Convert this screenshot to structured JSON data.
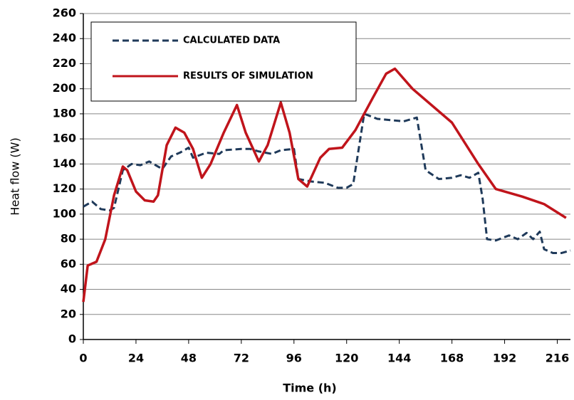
{
  "chart_data": {
    "type": "line",
    "x_label": "Time (h)",
    "y_label": "Heat flow (W)",
    "xlim": [
      0,
      222
    ],
    "ylim": [
      0,
      260
    ],
    "xticks": [
      0,
      24,
      48,
      72,
      96,
      120,
      144,
      168,
      192,
      216
    ],
    "yticks": [
      0,
      20,
      40,
      60,
      80,
      100,
      120,
      140,
      160,
      180,
      200,
      220,
      240,
      260
    ],
    "grid": true,
    "legend": "upper left",
    "series": [
      {
        "name": "CALCULATED DATA",
        "color": "#1f3a5a",
        "dash": true,
        "x": [
          0,
          4,
          8,
          12,
          14,
          18,
          22,
          26,
          30,
          34,
          36,
          40,
          44,
          48,
          50,
          56,
          62,
          64,
          72,
          76,
          80,
          86,
          90,
          96,
          98,
          104,
          110,
          116,
          120,
          123,
          128,
          134,
          140,
          146,
          152,
          156,
          162,
          168,
          172,
          176,
          180,
          182,
          184,
          188,
          194,
          198,
          202,
          205,
          208,
          210,
          214,
          218,
          222
        ],
        "values": [
          106,
          110,
          104,
          103,
          105,
          135,
          140,
          139,
          142,
          138,
          136,
          146,
          149,
          153,
          145,
          149,
          148,
          151,
          152,
          152,
          150,
          148,
          151,
          152,
          128,
          126,
          125,
          121,
          121,
          124,
          180,
          176,
          175,
          174,
          177,
          135,
          128,
          129,
          131,
          129,
          133,
          112,
          80,
          79,
          83,
          80,
          85,
          80,
          86,
          72,
          69,
          69,
          71
        ]
      },
      {
        "name": "RESULTS OF SIMULATION",
        "color": "#c0141b",
        "dash": false,
        "x": [
          0,
          2,
          6,
          10,
          14,
          18,
          20,
          24,
          28,
          32,
          34,
          38,
          42,
          46,
          50,
          54,
          58,
          64,
          70,
          74,
          80,
          84,
          90,
          94,
          98,
          102,
          108,
          112,
          118,
          124,
          132,
          138,
          142,
          150,
          168,
          180,
          188,
          200,
          210,
          220
        ],
        "values": [
          30,
          59,
          62,
          80,
          115,
          138,
          135,
          118,
          111,
          110,
          115,
          155,
          169,
          165,
          152,
          129,
          140,
          165,
          187,
          165,
          142,
          155,
          189,
          165,
          128,
          122,
          145,
          152,
          153,
          167,
          193,
          212,
          216,
          200,
          173,
          140,
          120,
          114,
          108,
          97
        ]
      }
    ]
  }
}
